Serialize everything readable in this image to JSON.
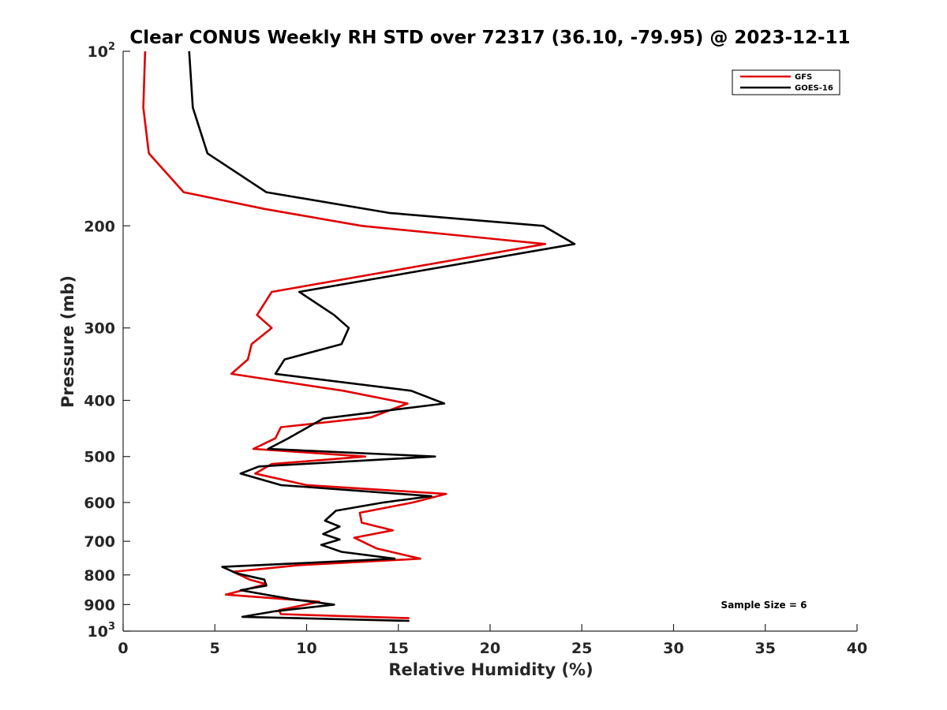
{
  "chart_data": {
    "type": "line",
    "title": "Clear CONUS Weekly RH STD over 72317 (36.10, -79.95) @ 2023-12-11",
    "xlabel": "Relative Humidity (%)",
    "ylabel": "Pressure (mb)",
    "xlim": [
      0,
      40
    ],
    "ylim": [
      100,
      1000
    ],
    "yscale": "log",
    "y_reversed": true,
    "x_ticks": [
      0,
      5,
      10,
      15,
      20,
      25,
      30,
      35,
      40
    ],
    "y_ticks": [
      {
        "value": 100,
        "base": "10",
        "exp": "2"
      },
      {
        "value": 200,
        "label": "200"
      },
      {
        "value": 300,
        "label": "300"
      },
      {
        "value": 400,
        "label": "400"
      },
      {
        "value": 500,
        "label": "500"
      },
      {
        "value": 600,
        "label": "600"
      },
      {
        "value": 700,
        "label": "700"
      },
      {
        "value": 800,
        "label": "800"
      },
      {
        "value": 900,
        "label": "900"
      },
      {
        "value": 1000,
        "base": "10",
        "exp": "3"
      }
    ],
    "grid": false,
    "legend_position": "top-right",
    "annotation": "Sample Size = 6",
    "series": [
      {
        "name": "GFS",
        "color": "#e00000",
        "points": [
          [
            1.2,
            100
          ],
          [
            1.1,
            125
          ],
          [
            1.4,
            150
          ],
          [
            3.3,
            175
          ],
          [
            7.7,
            187
          ],
          [
            13.0,
            200
          ],
          [
            23.0,
            215
          ],
          [
            8.1,
            260
          ],
          [
            7.3,
            285
          ],
          [
            8.1,
            300
          ],
          [
            7.0,
            320
          ],
          [
            6.8,
            340
          ],
          [
            5.9,
            360
          ],
          [
            12.0,
            385
          ],
          [
            15.5,
            405
          ],
          [
            13.5,
            428
          ],
          [
            8.6,
            445
          ],
          [
            8.3,
            465
          ],
          [
            7.1,
            485
          ],
          [
            13.2,
            500
          ],
          [
            8.1,
            515
          ],
          [
            7.2,
            535
          ],
          [
            10.0,
            560
          ],
          [
            17.6,
            580
          ],
          [
            15.8,
            600
          ],
          [
            12.9,
            625
          ],
          [
            13.0,
            650
          ],
          [
            14.7,
            670
          ],
          [
            12.6,
            690
          ],
          [
            13.8,
            720
          ],
          [
            16.2,
            750
          ],
          [
            9.5,
            770
          ],
          [
            6.0,
            790
          ],
          [
            6.9,
            815
          ],
          [
            7.8,
            830
          ],
          [
            5.6,
            865
          ],
          [
            10.7,
            890
          ],
          [
            8.5,
            920
          ],
          [
            8.6,
            935
          ],
          [
            15.6,
            950
          ]
        ]
      },
      {
        "name": "GOES-16",
        "color": "#000000",
        "points": [
          [
            3.6,
            100
          ],
          [
            3.8,
            125
          ],
          [
            4.6,
            150
          ],
          [
            7.8,
            175
          ],
          [
            14.5,
            190
          ],
          [
            22.9,
            200
          ],
          [
            24.6,
            215
          ],
          [
            9.6,
            260
          ],
          [
            11.5,
            285
          ],
          [
            12.3,
            300
          ],
          [
            11.9,
            320
          ],
          [
            8.8,
            340
          ],
          [
            8.3,
            360
          ],
          [
            15.7,
            385
          ],
          [
            17.5,
            405
          ],
          [
            10.9,
            430
          ],
          [
            9.0,
            465
          ],
          [
            7.9,
            485
          ],
          [
            17.0,
            500
          ],
          [
            7.4,
            520
          ],
          [
            6.4,
            535
          ],
          [
            8.6,
            560
          ],
          [
            16.8,
            585
          ],
          [
            14.2,
            600
          ],
          [
            11.6,
            620
          ],
          [
            11.0,
            645
          ],
          [
            11.8,
            660
          ],
          [
            10.9,
            680
          ],
          [
            11.8,
            695
          ],
          [
            10.8,
            710
          ],
          [
            11.9,
            730
          ],
          [
            14.8,
            750
          ],
          [
            5.4,
            775
          ],
          [
            6.2,
            795
          ],
          [
            7.7,
            815
          ],
          [
            7.8,
            835
          ],
          [
            6.4,
            850
          ],
          [
            9.1,
            880
          ],
          [
            11.5,
            900
          ],
          [
            8.2,
            925
          ],
          [
            6.5,
            945
          ],
          [
            15.6,
            960
          ]
        ]
      }
    ]
  }
}
